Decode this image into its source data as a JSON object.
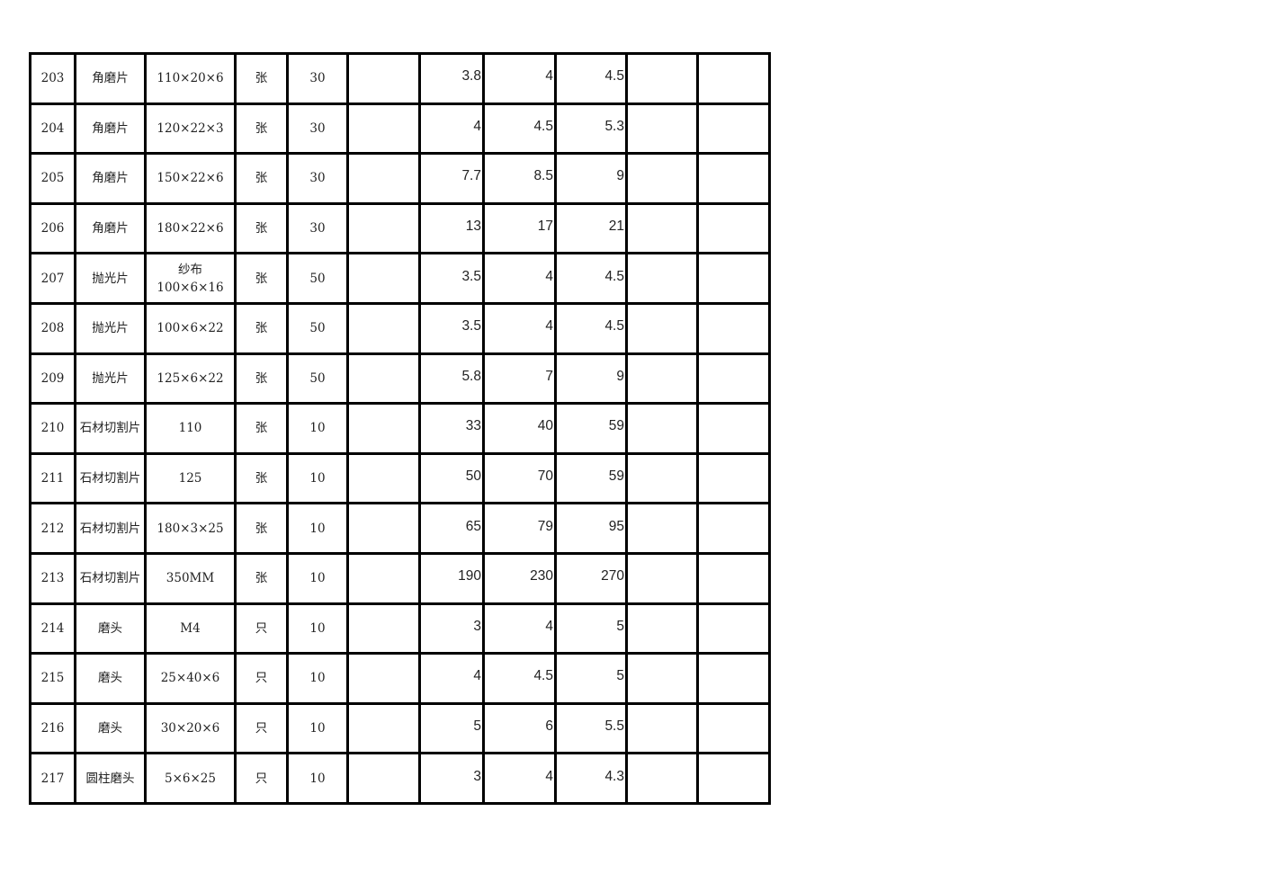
{
  "table": {
    "rows": [
      [
        "203",
        "角磨片",
        "110×20×6",
        "张",
        "30",
        "",
        "3.8",
        "4",
        "4.5",
        "",
        ""
      ],
      [
        "204",
        "角磨片",
        "120×22×3",
        "张",
        "30",
        "",
        "4",
        "4.5",
        "5.3",
        "",
        ""
      ],
      [
        "205",
        "角磨片",
        "150×22×6",
        "张",
        "30",
        "",
        "7.7",
        "8.5",
        "9",
        "",
        ""
      ],
      [
        "206",
        "角磨片",
        "180×22×6",
        "张",
        "30",
        "",
        "13",
        "17",
        "21",
        "",
        ""
      ],
      [
        "207",
        "抛光片",
        "纱布\n100×6×16",
        "张",
        "50",
        "",
        "3.5",
        "4",
        "4.5",
        "",
        ""
      ],
      [
        "208",
        "抛光片",
        "100×6×22",
        "张",
        "50",
        "",
        "3.5",
        "4",
        "4.5",
        "",
        ""
      ],
      [
        "209",
        "抛光片",
        "125×6×22",
        "张",
        "50",
        "",
        "5.8",
        "7",
        "9",
        "",
        ""
      ],
      [
        "210",
        "石材切割片",
        "110",
        "张",
        "10",
        "",
        "33",
        "40",
        "59",
        "",
        ""
      ],
      [
        "211",
        "石材切割片",
        "125",
        "张",
        "10",
        "",
        "50",
        "70",
        "59",
        "",
        ""
      ],
      [
        "212",
        "石材切割片",
        "180×3×25",
        "张",
        "10",
        "",
        "65",
        "79",
        "95",
        "",
        ""
      ],
      [
        "213",
        "石材切割片",
        "350MM",
        "张",
        "10",
        "",
        "190",
        "230",
        "270",
        "",
        ""
      ],
      [
        "214",
        "磨头",
        "M4",
        "只",
        "10",
        "",
        "3",
        "4",
        "5",
        "",
        ""
      ],
      [
        "215",
        "磨头",
        "25×40×6",
        "只",
        "10",
        "",
        "4",
        "4.5",
        "5",
        "",
        ""
      ],
      [
        "216",
        "磨头",
        "30×20×6",
        "只",
        "10",
        "",
        "5",
        "6",
        "5.5",
        "",
        ""
      ],
      [
        "217",
        "圆柱磨头",
        "5×6×25",
        "只",
        "10",
        "",
        "3",
        "4",
        "4.3",
        "",
        ""
      ]
    ]
  }
}
